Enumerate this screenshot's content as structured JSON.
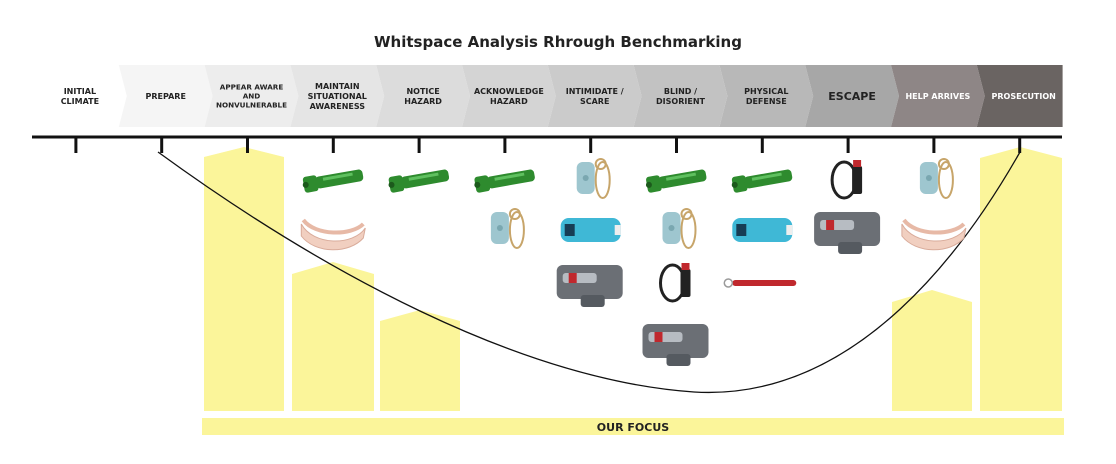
{
  "title": "Whitspace Analysis Rhrough Benchmarking",
  "stages": [
    {
      "label": "INITIAL\nCLIMATE",
      "fill": "#ffffff",
      "text": "#222222"
    },
    {
      "label": "PREPARE",
      "fill": "#f5f5f5",
      "text": "#222222"
    },
    {
      "label": "APPEAR AWARE\nAND\nNONVULNERABLE",
      "fill": "#ededed",
      "text": "#222222"
    },
    {
      "label": "MAINTAIN\nSITUATIONAL\nAWARENESS",
      "fill": "#e5e5e5",
      "text": "#222222"
    },
    {
      "label": "NOTICE\nHAZARD",
      "fill": "#dcdcdc",
      "text": "#222222"
    },
    {
      "label": "ACKNOWLEDGE\nHAZARD",
      "fill": "#d4d4d4",
      "text": "#222222"
    },
    {
      "label": "INTIMIDATE /\nSCARE",
      "fill": "#cbcbcb",
      "text": "#222222"
    },
    {
      "label": "BLIND /\nDISORIENT",
      "fill": "#c2c2c2",
      "text": "#222222"
    },
    {
      "label": "PHYSICAL\nDEFENSE",
      "fill": "#b8b8b8",
      "text": "#222222"
    },
    {
      "label": "ESCAPE",
      "fill": "#a7a7a7",
      "text": "#222222"
    },
    {
      "label": "HELP ARRIVES",
      "fill": "#8e8686",
      "text": "#ffffff"
    },
    {
      "label": "PROSECUTION",
      "fill": "#6a6462",
      "text": "#ffffff"
    }
  ],
  "focus_label": "OUR FOCUS",
  "colors": {
    "focus_bar": "#fbf59a",
    "column": "#fbf59a",
    "axis": "#111111",
    "flashlight": "#2e8b2e",
    "alarm": "#9ec6cf",
    "stun_gun": "#3fb8d6",
    "pepper_gun": "#6b6f75",
    "spray": "#222222",
    "wristband": "#f1cfc0",
    "kubotan": "#c0282d"
  },
  "product_grid": [
    {
      "stage": 3,
      "items": [
        "flashlight-icon",
        "wristband-icon"
      ]
    },
    {
      "stage": 4,
      "items": [
        "flashlight-icon"
      ]
    },
    {
      "stage": 5,
      "items": [
        "flashlight-icon",
        "personal-alarm-icon"
      ]
    },
    {
      "stage": 6,
      "items": [
        "personal-alarm-icon",
        "stun-gun-icon",
        "pepper-gun-icon"
      ]
    },
    {
      "stage": 7,
      "items": [
        "flashlight-icon",
        "personal-alarm-icon",
        "pepper-spray-icon",
        "pepper-gun-icon"
      ]
    },
    {
      "stage": 8,
      "items": [
        "flashlight-icon",
        "stun-gun-icon",
        "kubotan-icon"
      ]
    },
    {
      "stage": 9,
      "items": [
        "pepper-spray-icon",
        "pepper-gun-icon"
      ]
    },
    {
      "stage": 10,
      "items": [
        "personal-alarm-icon",
        "wristband-icon"
      ]
    }
  ]
}
